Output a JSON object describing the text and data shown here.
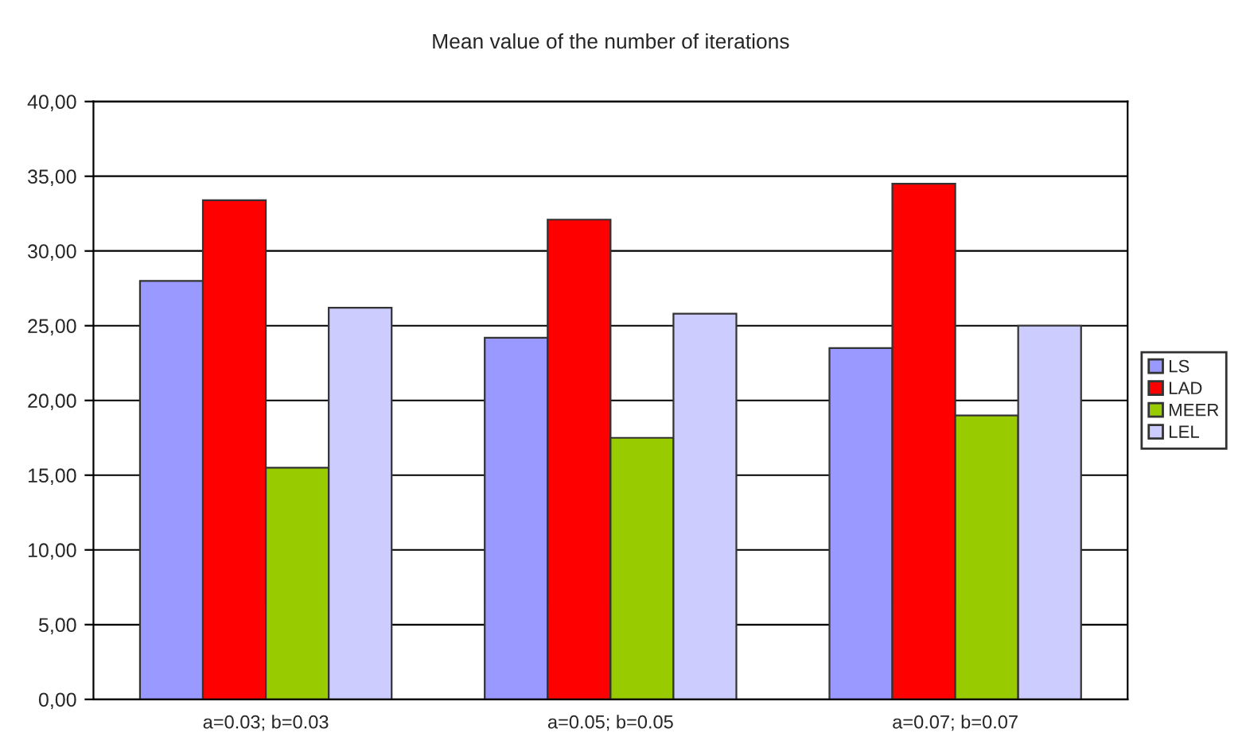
{
  "chart_data": {
    "type": "bar",
    "title": "Mean value of the number of iterations",
    "categories": [
      "a=0.03; b=0.03",
      "a=0.05; b=0.05",
      "a=0.07; b=0.07"
    ],
    "series": [
      {
        "name": "LS",
        "color": "#9999ff",
        "values": [
          28.0,
          24.2,
          23.5
        ]
      },
      {
        "name": "LAD",
        "color": "#ff0000",
        "values": [
          33.4,
          32.1,
          34.5
        ]
      },
      {
        "name": "MEER",
        "color": "#99cc00",
        "values": [
          15.5,
          17.5,
          19.0
        ]
      },
      {
        "name": "LEL",
        "color": "#ccccff",
        "values": [
          26.2,
          25.8,
          25.0
        ]
      }
    ],
    "ylim": [
      0,
      40
    ],
    "yticks": [
      {
        "value": 0,
        "label": "0,00"
      },
      {
        "value": 5,
        "label": "5,00"
      },
      {
        "value": 10,
        "label": "10,00"
      },
      {
        "value": 15,
        "label": "15,00"
      },
      {
        "value": 20,
        "label": "20,00"
      },
      {
        "value": 25,
        "label": "25,00"
      },
      {
        "value": 30,
        "label": "30,00"
      },
      {
        "value": 35,
        "label": "35,00"
      },
      {
        "value": 40,
        "label": "40,00"
      }
    ],
    "grid": "y",
    "legend": "right"
  }
}
